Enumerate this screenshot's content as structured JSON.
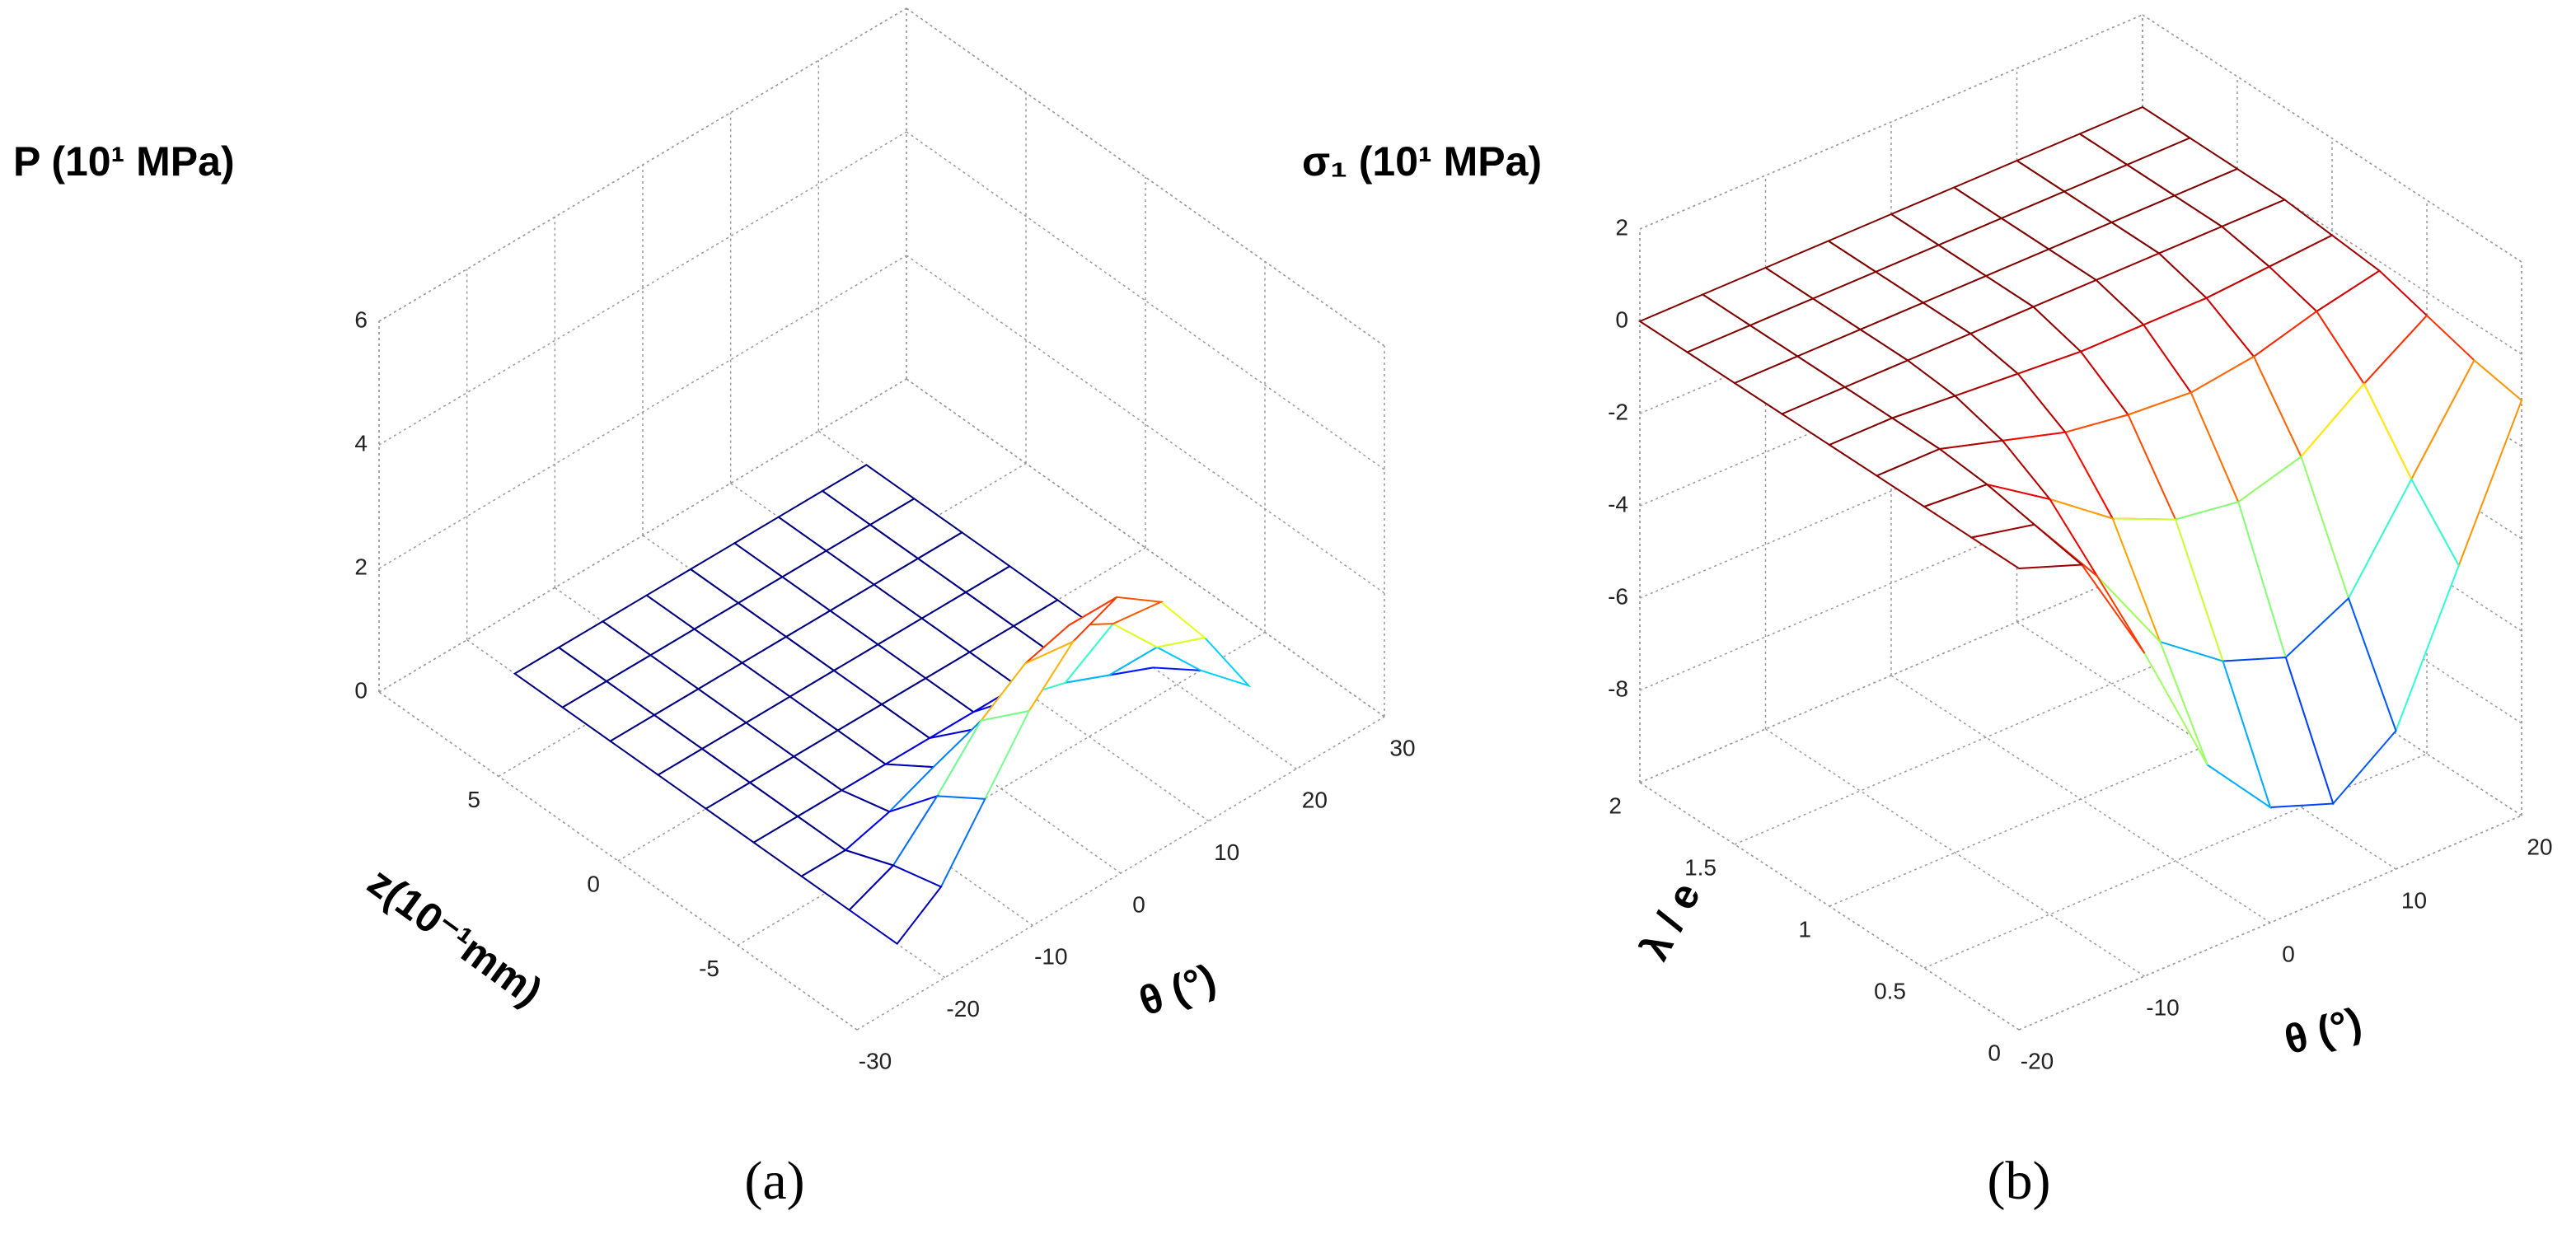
{
  "chart_data": [
    {
      "type": "surface",
      "title": "P (10¹ MPa)",
      "xlabel": "θ (°)",
      "ylabel": "z(10⁻¹mm)",
      "caption": "(a)",
      "x": [
        -20,
        -15,
        -10,
        -5,
        0,
        5,
        10,
        15,
        20
      ],
      "y": [
        -8,
        -6,
        -4,
        -2,
        0,
        2,
        4,
        6,
        8
      ],
      "z": [
        [
          0,
          0.5,
          1.5,
          2.5,
          3.2,
          3.5,
          3,
          2,
          0.8
        ],
        [
          0,
          0.3,
          1,
          1.8,
          2.3,
          2.5,
          2.1,
          1.3,
          0.5
        ],
        [
          0,
          0,
          0.2,
          0.5,
          0.7,
          0.8,
          0.6,
          0.3,
          0
        ],
        [
          0,
          0,
          0,
          0,
          0,
          0,
          0,
          0,
          0
        ],
        [
          0,
          0,
          0,
          0,
          0,
          0,
          0,
          0,
          0
        ],
        [
          0,
          0,
          0,
          0,
          0,
          0,
          0,
          0,
          0
        ],
        [
          0,
          0,
          0,
          0,
          0,
          0,
          0,
          0,
          0
        ],
        [
          0,
          0,
          0,
          0,
          0,
          0,
          0,
          0,
          0
        ],
        [
          0,
          0,
          0,
          0,
          0,
          0,
          0,
          0,
          0
        ]
      ],
      "xlim": [
        -30,
        30
      ],
      "xticks": [
        -30,
        -20,
        -10,
        0,
        10,
        20,
        30
      ],
      "ylim": [
        -10,
        10
      ],
      "yticks": [
        -5,
        0,
        5
      ],
      "zlim": [
        0,
        6
      ],
      "zticks": [
        0,
        2,
        4,
        6
      ],
      "colormap": "jet",
      "grid": true
    },
    {
      "type": "surface",
      "title": "σ₁ (10¹ MPa)",
      "xlabel": "θ (°)",
      "ylabel": "λ / e",
      "caption": "(b)",
      "x": [
        -20,
        -15,
        -10,
        -5,
        0,
        5,
        10,
        15,
        20
      ],
      "y": [
        0,
        0.25,
        0.5,
        0.75,
        1,
        1.25,
        1.5,
        1.75,
        2
      ],
      "z": [
        [
          0,
          -0.5,
          -3,
          -6,
          -7.5,
          -8,
          -7,
          -4,
          -1
        ],
        [
          0,
          -0.3,
          -2,
          -4,
          -5,
          -5.5,
          -4.8,
          -2.8,
          -0.8
        ],
        [
          0,
          -0.1,
          -1,
          -2,
          -2.6,
          -2.8,
          -2.4,
          -1.4,
          -0.5
        ],
        [
          0,
          0,
          -0.4,
          -0.8,
          -1,
          -1.1,
          -0.9,
          -0.5,
          -0.2
        ],
        [
          0,
          0,
          -0.1,
          -0.2,
          -0.3,
          -0.3,
          -0.3,
          -0.2,
          -0.1
        ],
        [
          0,
          0,
          0,
          0,
          0,
          0,
          0,
          0,
          0
        ],
        [
          0,
          0,
          0,
          0,
          0,
          0,
          0,
          0,
          0
        ],
        [
          0,
          0,
          0,
          0,
          0,
          0,
          0,
          0,
          0
        ],
        [
          0,
          0,
          0,
          0,
          0,
          0,
          0,
          0,
          0
        ]
      ],
      "xlim": [
        -20,
        20
      ],
      "xticks": [
        -20,
        -10,
        0,
        10,
        20
      ],
      "ylim": [
        0,
        2
      ],
      "yticks": [
        0,
        0.5,
        1,
        1.5,
        2
      ],
      "zlim": [
        -10,
        2
      ],
      "zticks": [
        -8,
        -6,
        -4,
        -2,
        0,
        2
      ],
      "colormap": "jet",
      "grid": true
    }
  ]
}
